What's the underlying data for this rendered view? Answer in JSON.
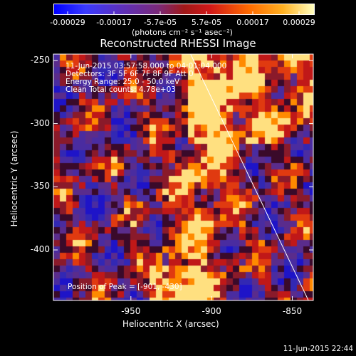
{
  "colorbar": {
    "tick_labels": [
      "-0.00029",
      "-0.00017",
      "-5.7e-05",
      "5.7e-05",
      "0.00017",
      "0.00029"
    ],
    "units": "(photons cm⁻² s⁻¹ asec⁻²)",
    "colors": [
      "#0000ff",
      "#5a30c0",
      "#7a2a7a",
      "#d01818",
      "#ff8a00",
      "#ffffc0"
    ]
  },
  "image": {
    "title": "Reconstructed RHESSI Image",
    "info_lines": [
      "11-Jun-2015 03:57:58.000 to 04:01:04.000",
      "Detectors: 3F 5F 6F 7F 8F 9F  Att 0",
      "Energy Range: 25.0 - 50.0 keV",
      "Clean    Total counts: 4.78e+03"
    ],
    "peak_label": "Position of Peak = [-901, -430]",
    "x_axis_label": "Heliocentric X (arcsec)",
    "y_axis_label": "Heliocentric Y (arcsec)",
    "x_ticks": [
      "-950",
      "-900",
      "-850"
    ],
    "y_ticks": [
      "-250",
      "-300",
      "-350",
      "-400"
    ],
    "x_range": [
      -998,
      -837
    ],
    "y_range": [
      -440,
      -245
    ],
    "limb_line": {
      "x1": -913,
      "y1": -245,
      "x2": -840,
      "y2": -440
    }
  },
  "timestamp": "11-Jun-2015 22:44"
}
